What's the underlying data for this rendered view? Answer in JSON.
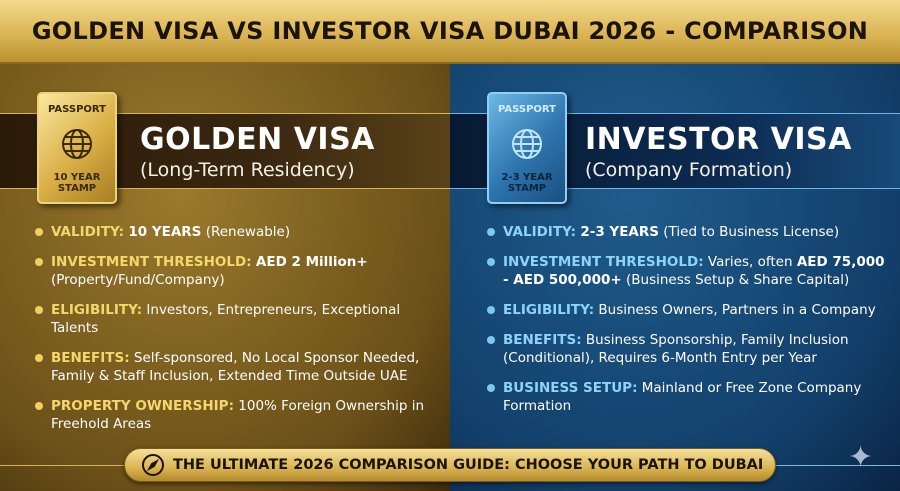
{
  "header": {
    "title": "GOLDEN VISA VS INVESTOR VISA DUBAI 2026 - COMPARISON"
  },
  "golden": {
    "passport": {
      "top": "PASSPORT",
      "bottom": "10 YEAR STAMP",
      "icon": "globe-icon"
    },
    "title": "GOLDEN VISA",
    "subtitle": "(Long-Term Residency)",
    "items": [
      {
        "label": "VALIDITY:",
        "bold": "10 YEARS",
        "text": " (Renewable)"
      },
      {
        "label": "INVESTMENT THRESHOLD:",
        "bold": "AED 2 Million+",
        "text": " (Property/Fund/Company)"
      },
      {
        "label": "ELIGIBILITY:",
        "bold": "",
        "text": " Investors, Entrepreneurs, Exceptional Talents"
      },
      {
        "label": "BENEFITS:",
        "bold": "",
        "text": " Self-sponsored, No Local Sponsor Needed, Family & Staff Inclusion, Extended Time Outside UAE"
      },
      {
        "label": "PROPERTY OWNERSHIP:",
        "bold": "",
        "text": " 100% Foreign Ownership in Freehold Areas"
      }
    ]
  },
  "investor": {
    "passport": {
      "top": "PASSPORT",
      "bottom": "2-3 YEAR STAMP",
      "icon": "globe-icon"
    },
    "title": "INVESTOR VISA",
    "subtitle": "(Company Formation)",
    "items": [
      {
        "label": "VALIDITY:",
        "bold": "2-3 YEARS",
        "text": " (Tied to Business License)"
      },
      {
        "label": "INVESTMENT THRESHOLD:",
        "bold": "",
        "text": " Varies, often ",
        "bold2": "AED 75,000 - AED 500,000+",
        "text2": " (Business Setup & Share Capital)"
      },
      {
        "label": "ELIGIBILITY:",
        "bold": "",
        "text": " Business Owners, Partners in a Company"
      },
      {
        "label": "BENEFITS:",
        "bold": "",
        "text": " Business Sponsorship, Family Inclusion (Conditional), Requires 6-Month Entry per Year"
      },
      {
        "label": "BUSINESS SETUP:",
        "bold": "",
        "text": " Mainland or Free Zone Company Formation"
      }
    ]
  },
  "footer": {
    "text": "THE ULTIMATE 2026 COMPARISON GUIDE: CHOOSE YOUR PATH TO DUBAI",
    "icon": "compass-icon"
  },
  "colors": {
    "gold": "#d9b251",
    "blue": "#123f6a",
    "gold_label": "#f5d76b",
    "blue_label": "#8ed4f7"
  }
}
